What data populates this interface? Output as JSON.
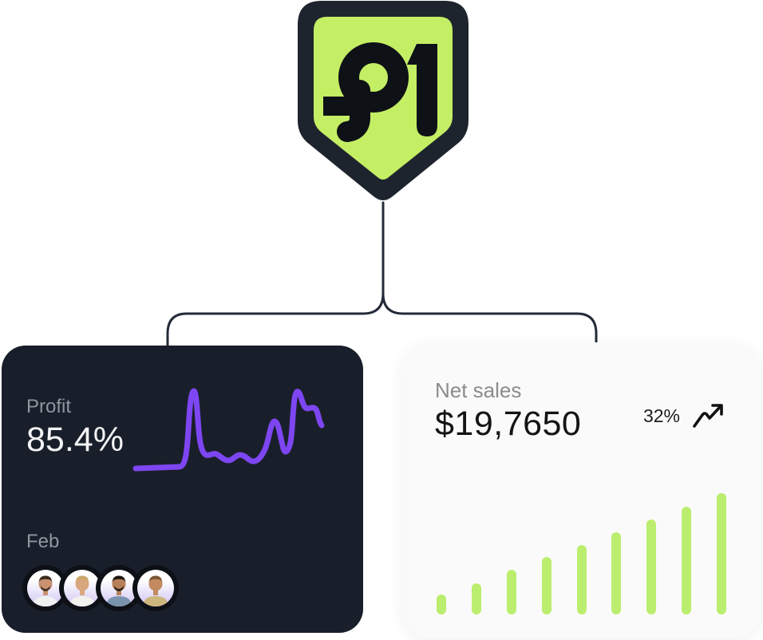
{
  "colors": {
    "page-bg": "#ffffff",
    "shield-border": "#1e242e",
    "shield-fill": "#c4ee64",
    "logo-glyph": "#0e1116",
    "connector": "#242b38",
    "card-dark": "#191f2a",
    "card-light": "#fafafa",
    "muted-dark": "#8f96a0",
    "muted-light": "#8c8c8c",
    "text-light": "#f3f4f6",
    "text-dark": "#141414",
    "accent-purple": "#7d46f2",
    "bar-green": "#bbee6e",
    "avatar-ring": "#0d1016"
  },
  "logo": {
    "name": "P1 shield logo"
  },
  "profit_card": {
    "label": "Profit",
    "value": "85.4%",
    "month": "Feb",
    "line_path": "M5 110 L60 108 C67 107 69 93 71 62 C73 26 75 13 78 13 C81 13 82 38 84 62 C86 84 89 91 93 93 C98 95 101 90 106 92 C111 94 115 100 121 100 C127 100 130 93 136 93 C142 93 146 100 151 101 C157 102 162 97 167 86 C172 75 174 51 179 51 C184 51 186 70 190 85 C192 92 196 90 199 77 C202 62 202 17 207 14 C211 11 213 28 217 33 C221 38 225 31 230 35 C234 39 234 51 238 56",
    "avatars": [
      {
        "hair": "#3b2b20",
        "skin": "#c99271",
        "shirt": "#eef0f2",
        "beard": true
      },
      {
        "hair": "#c9a96b",
        "skin": "#d8a77e",
        "shirt": "#f1f2ee",
        "beard": false
      },
      {
        "hair": "#201710",
        "skin": "#b8805a",
        "shirt": "#7a93ad",
        "beard": true
      },
      {
        "hair": "#7b5632",
        "skin": "#c28a5e",
        "shirt": "#cdb67e",
        "beard": false
      }
    ]
  },
  "net_sales_card": {
    "label": "Net sales",
    "value": "$19,7650",
    "change": "32%"
  },
  "chart_data": [
    {
      "type": "line",
      "title": "Profit trend (sparkline, no axes shown)",
      "series": [
        {
          "name": "Profit",
          "values": [
            13,
            13,
            14,
            14,
            90,
            30,
            26,
            28,
            22,
            26,
            27,
            22,
            20,
            32,
            60,
            28,
            92,
            75,
            74,
            73,
            65,
            58
          ]
        }
      ],
      "xlabel": "",
      "ylabel": "",
      "ylim": [
        0,
        100
      ],
      "grid": false,
      "legend": false,
      "line_color": "#7d46f2"
    },
    {
      "type": "bar",
      "title": "Net sales by period (no axes shown)",
      "categories": [
        "1",
        "2",
        "3",
        "4",
        "5",
        "6",
        "7",
        "8",
        "9"
      ],
      "values": [
        25,
        39,
        56,
        72,
        87,
        103,
        119,
        135,
        152
      ],
      "xlabel": "",
      "ylabel": "",
      "ylim": [
        0,
        160
      ],
      "grid": false,
      "legend": false,
      "bar_color": "#bbee6e"
    }
  ]
}
